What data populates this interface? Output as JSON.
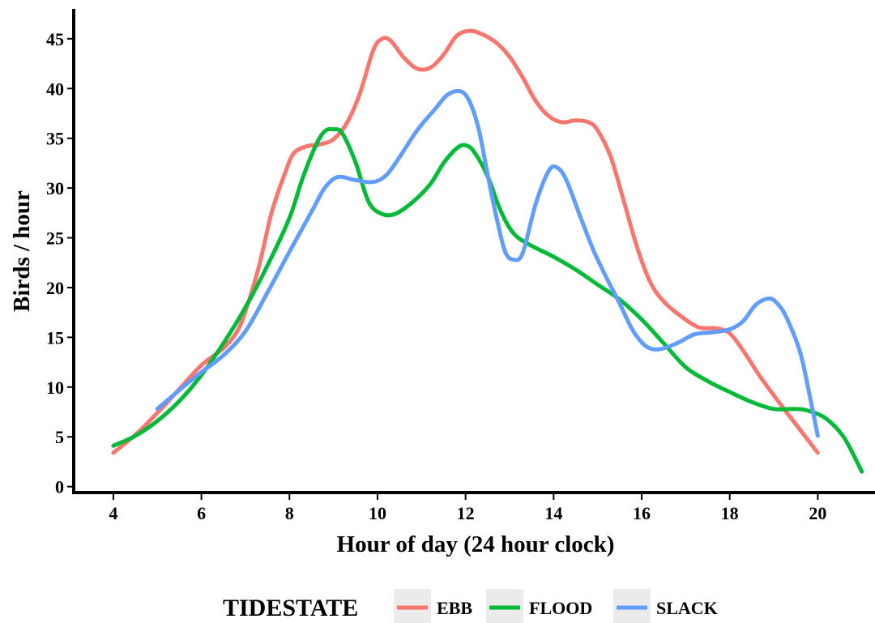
{
  "chart_data": {
    "type": "line",
    "title": "",
    "xlabel": "Hour of day (24 hour clock)",
    "ylabel": "Birds / hour",
    "xlim": [
      3.1,
      21.3
    ],
    "ylim": [
      -0.6,
      48
    ],
    "x_ticks": [
      4,
      6,
      8,
      10,
      12,
      14,
      16,
      18,
      20
    ],
    "y_ticks": [
      0,
      5,
      10,
      15,
      20,
      25,
      30,
      35,
      40,
      45
    ],
    "grid": false,
    "legend": {
      "title": "TIDESTATE",
      "position": "bottom"
    },
    "series": [
      {
        "name": "EBB",
        "color": "#f8766d",
        "points": [
          [
            4,
            3.4
          ],
          [
            4.5,
            5.2
          ],
          [
            5,
            7.4
          ],
          [
            5.5,
            9.8
          ],
          [
            6,
            12.2
          ],
          [
            6.5,
            13.9
          ],
          [
            6.8,
            15.5
          ],
          [
            7,
            17.6
          ],
          [
            7.3,
            22
          ],
          [
            7.6,
            27.6
          ],
          [
            7.9,
            31.5
          ],
          [
            8.1,
            33.5
          ],
          [
            8.4,
            34.2
          ],
          [
            8.7,
            34.4
          ],
          [
            9,
            34.9
          ],
          [
            9.3,
            36.5
          ],
          [
            9.6,
            39.5
          ],
          [
            9.9,
            43.8
          ],
          [
            10.1,
            45.0
          ],
          [
            10.3,
            44.8
          ],
          [
            10.6,
            43.1
          ],
          [
            10.9,
            42.0
          ],
          [
            11.2,
            42.1
          ],
          [
            11.5,
            43.4
          ],
          [
            11.8,
            45.3
          ],
          [
            12.1,
            45.8
          ],
          [
            12.4,
            45.4
          ],
          [
            12.7,
            44.6
          ],
          [
            13,
            43.2
          ],
          [
            13.3,
            41.1
          ],
          [
            13.6,
            38.7
          ],
          [
            13.9,
            37.2
          ],
          [
            14.2,
            36.6
          ],
          [
            14.5,
            36.8
          ],
          [
            14.8,
            36.6
          ],
          [
            15,
            35.8
          ],
          [
            15.3,
            33.1
          ],
          [
            15.6,
            28.6
          ],
          [
            15.9,
            24.0
          ],
          [
            16.2,
            20.5
          ],
          [
            16.5,
            18.6
          ],
          [
            16.9,
            17.1
          ],
          [
            17.3,
            16.0
          ],
          [
            17.7,
            15.9
          ],
          [
            18.0,
            15.4
          ],
          [
            18.3,
            13.7
          ],
          [
            18.7,
            11.0
          ],
          [
            19.2,
            8.0
          ],
          [
            19.6,
            5.7
          ],
          [
            20,
            3.4
          ]
        ]
      },
      {
        "name": "FLOOD",
        "color": "#00ba38",
        "points": [
          [
            4,
            4.1
          ],
          [
            4.5,
            5.1
          ],
          [
            5,
            6.6
          ],
          [
            5.5,
            8.6
          ],
          [
            6,
            11.2
          ],
          [
            6.5,
            14.4
          ],
          [
            7,
            18.0
          ],
          [
            7.5,
            22.2
          ],
          [
            8,
            27.0
          ],
          [
            8.3,
            31.0
          ],
          [
            8.6,
            34.3
          ],
          [
            8.8,
            35.7
          ],
          [
            9.0,
            35.9
          ],
          [
            9.2,
            35.5
          ],
          [
            9.5,
            32.6
          ],
          [
            9.8,
            28.6
          ],
          [
            10.1,
            27.4
          ],
          [
            10.4,
            27.4
          ],
          [
            10.8,
            28.6
          ],
          [
            11.2,
            30.4
          ],
          [
            11.5,
            32.5
          ],
          [
            11.8,
            34.0
          ],
          [
            12.0,
            34.3
          ],
          [
            12.2,
            33.6
          ],
          [
            12.5,
            31.2
          ],
          [
            12.8,
            27.7
          ],
          [
            13.1,
            25.4
          ],
          [
            13.5,
            24.2
          ],
          [
            14,
            23.1
          ],
          [
            14.5,
            21.8
          ],
          [
            15,
            20.3
          ],
          [
            15.5,
            18.8
          ],
          [
            16,
            16.8
          ],
          [
            16.5,
            14.4
          ],
          [
            17,
            12.0
          ],
          [
            17.5,
            10.6
          ],
          [
            18,
            9.5
          ],
          [
            18.5,
            8.5
          ],
          [
            19,
            7.8
          ],
          [
            19.5,
            7.8
          ],
          [
            19.8,
            7.6
          ],
          [
            20.2,
            6.8
          ],
          [
            20.6,
            4.9
          ],
          [
            21.0,
            1.5
          ]
        ]
      },
      {
        "name": "SLACK",
        "color": "#619cff",
        "points": [
          [
            5,
            7.8
          ],
          [
            5.5,
            9.7
          ],
          [
            6,
            11.5
          ],
          [
            6.5,
            13.2
          ],
          [
            7,
            15.6
          ],
          [
            7.5,
            19.5
          ],
          [
            8,
            23.6
          ],
          [
            8.5,
            27.6
          ],
          [
            8.8,
            30.0
          ],
          [
            9.1,
            31.1
          ],
          [
            9.5,
            30.8
          ],
          [
            9.9,
            30.6
          ],
          [
            10.2,
            31.3
          ],
          [
            10.5,
            33.1
          ],
          [
            10.9,
            35.8
          ],
          [
            11.3,
            37.9
          ],
          [
            11.6,
            39.4
          ],
          [
            11.9,
            39.7
          ],
          [
            12.1,
            38.6
          ],
          [
            12.3,
            35.9
          ],
          [
            12.5,
            31.4
          ],
          [
            12.7,
            27.1
          ],
          [
            12.9,
            23.6
          ],
          [
            13.1,
            22.8
          ],
          [
            13.3,
            23.5
          ],
          [
            13.6,
            28.5
          ],
          [
            13.9,
            31.8
          ],
          [
            14.1,
            32.0
          ],
          [
            14.3,
            30.7
          ],
          [
            14.6,
            27.2
          ],
          [
            14.9,
            23.8
          ],
          [
            15.2,
            21.0
          ],
          [
            15.5,
            18.4
          ],
          [
            15.8,
            15.7
          ],
          [
            16.1,
            14.1
          ],
          [
            16.4,
            13.8
          ],
          [
            16.8,
            14.4
          ],
          [
            17.2,
            15.3
          ],
          [
            17.6,
            15.5
          ],
          [
            18.0,
            15.8
          ],
          [
            18.3,
            16.6
          ],
          [
            18.6,
            18.3
          ],
          [
            18.9,
            18.9
          ],
          [
            19.1,
            18.3
          ],
          [
            19.3,
            16.9
          ],
          [
            19.6,
            13.5
          ],
          [
            19.8,
            9.5
          ],
          [
            20,
            5.1
          ]
        ]
      }
    ]
  }
}
